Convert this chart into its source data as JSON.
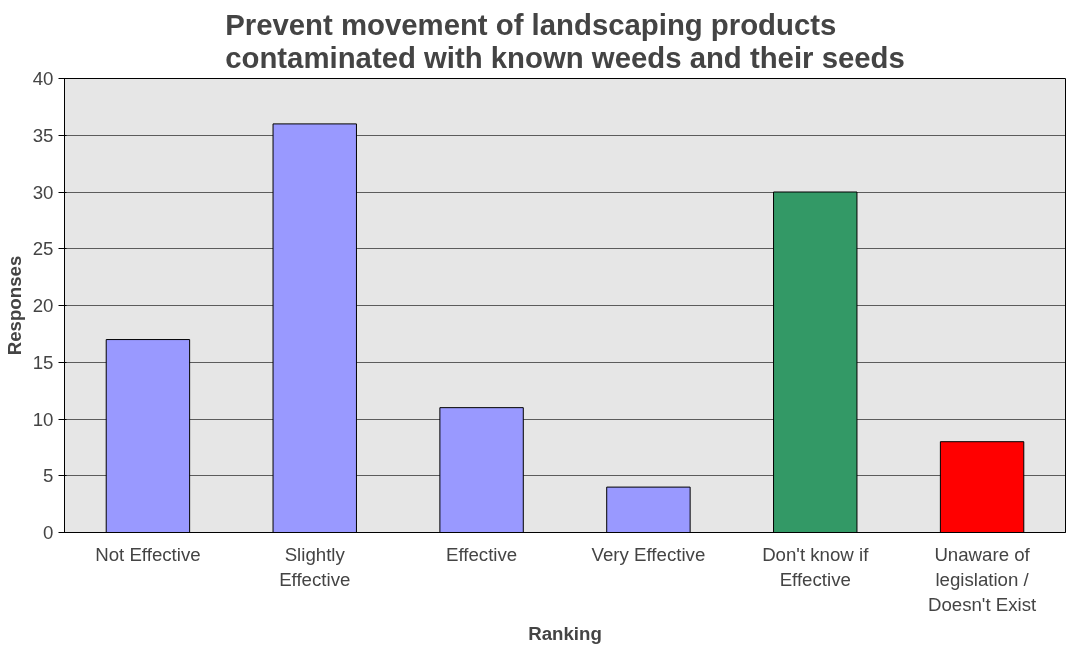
{
  "chart_data": {
    "type": "bar",
    "title": "Prevent movement of landscaping products contaminated with known weeds and their seeds",
    "xlabel": "Ranking",
    "ylabel": "Responses",
    "categories": [
      "Not Effective",
      "Slightly Effective",
      "Effective",
      "Very Effective",
      "Don't know if Effective",
      "Unaware of legislation / Doesn't Exist"
    ],
    "values": [
      17,
      36,
      11,
      4,
      30,
      8
    ],
    "colors": [
      "#9999ff",
      "#9999ff",
      "#9999ff",
      "#9999ff",
      "#339966",
      "#ff0000"
    ],
    "ylim": [
      0,
      40
    ],
    "yticks": [
      0,
      5,
      10,
      15,
      20,
      25,
      30,
      35,
      40
    ],
    "grid": "y"
  }
}
